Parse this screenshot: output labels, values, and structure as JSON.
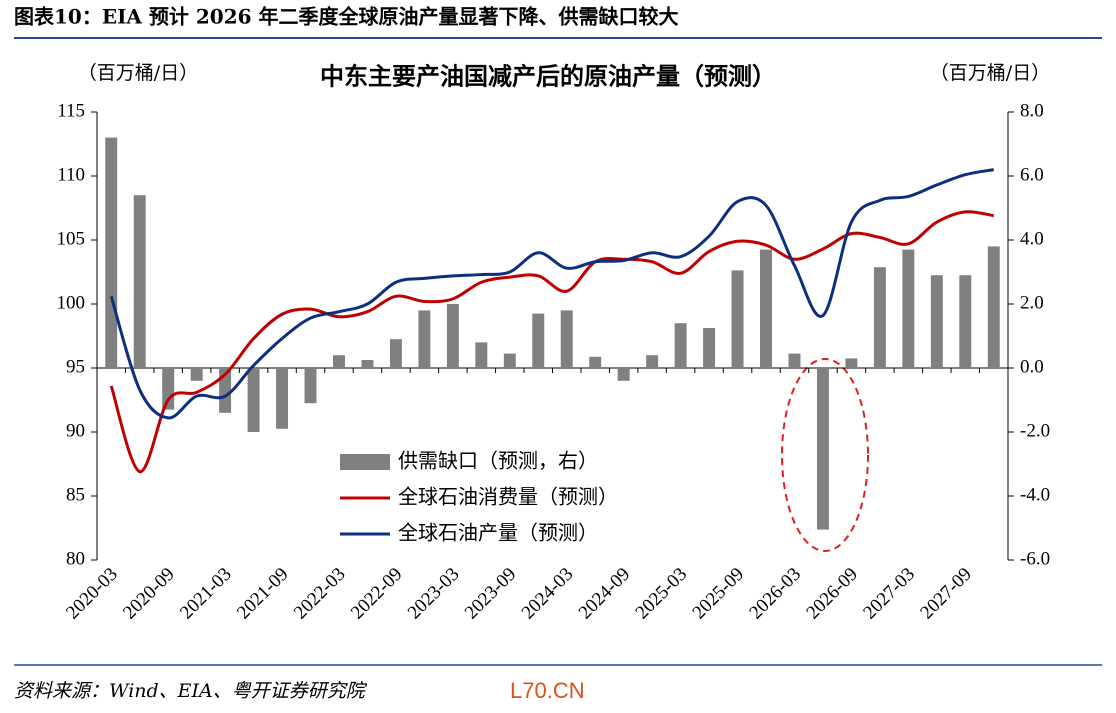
{
  "header": "图表10：EIA 预计 2026 年二季度全球原油产量显著下降、供需缺口较大",
  "source": "资料来源：Wind、EIA、粤开证券研究院",
  "watermark": "L70.CN",
  "chart_data": {
    "type": "combo",
    "title": "中东主要产油国减产后的原油产量（预测）",
    "y_label": "（百万桶/日）",
    "y2_label": "（百万桶/日）",
    "categories": [
      "2020-03",
      null,
      "2020-09",
      null,
      "2021-03",
      null,
      "2021-09",
      null,
      "2022-03",
      null,
      "2022-09",
      null,
      "2023-03",
      null,
      "2023-09",
      null,
      "2024-03",
      null,
      "2024-09",
      null,
      "2025-03",
      null,
      "2025-09",
      null,
      "2026-03",
      null,
      "2026-09",
      null,
      "2027-03",
      null,
      "2027-09",
      null
    ],
    "ylim": [
      80,
      115
    ],
    "yticks": [
      80,
      85,
      90,
      95,
      100,
      105,
      110,
      115
    ],
    "y2lim": [
      -6,
      8
    ],
    "y2ticks": [
      {
        "value": -6,
        "label": "-6.0"
      },
      {
        "value": -4,
        "label": "-4.0"
      },
      {
        "value": -2,
        "label": "-2.0"
      },
      {
        "value": 0,
        "label": "0.0"
      },
      {
        "value": 2,
        "label": "2.0"
      },
      {
        "value": 4,
        "label": "4.0"
      },
      {
        "value": 6,
        "label": "6.0"
      },
      {
        "value": 8,
        "label": "8.0"
      }
    ],
    "legend": "lower-left",
    "series": [
      {
        "name": "供需缺口（预测，右）",
        "type": "bar",
        "axis": "y2",
        "color": "#808080",
        "values": [
          7.2,
          5.4,
          -1.3,
          -0.4,
          -1.4,
          -2.0,
          -1.9,
          -1.1,
          0.4,
          0.25,
          0.9,
          1.8,
          2.0,
          0.8,
          0.45,
          1.7,
          1.8,
          0.35,
          -0.4,
          0.4,
          1.4,
          1.25,
          3.05,
          3.7,
          0.45,
          -5.05,
          0.3,
          3.15,
          3.7,
          2.9,
          2.9,
          3.8
        ]
      },
      {
        "name": "全球石油消费量（预测）",
        "type": "line",
        "color": "#c00000",
        "values": [
          93.6,
          86.9,
          92.5,
          93.1,
          94.5,
          97.3,
          99.2,
          99.6,
          99.0,
          99.4,
          100.6,
          100.2,
          100.4,
          101.7,
          102.1,
          102.2,
          101.0,
          103.3,
          103.5,
          103.3,
          102.4,
          104.1,
          104.9,
          104.6,
          103.5,
          104.3,
          105.5,
          105.2,
          104.7,
          106.4,
          107.2,
          106.9
        ]
      },
      {
        "name": "全球石油产量（预测）",
        "type": "line",
        "color": "#0d2f7e",
        "values": [
          100.6,
          93.3,
          91.1,
          92.8,
          92.8,
          95.2,
          97.3,
          98.9,
          99.4,
          100.0,
          101.7,
          102.0,
          102.2,
          102.3,
          102.5,
          104.0,
          102.8,
          103.3,
          103.4,
          104.0,
          103.7,
          105.3,
          108.0,
          107.7,
          103.0,
          99.1,
          106.4,
          108.1,
          108.4,
          109.3,
          110.1,
          110.5
        ]
      }
    ]
  }
}
